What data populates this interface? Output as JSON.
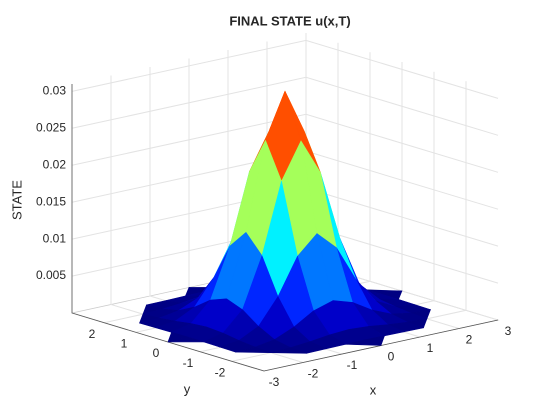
{
  "chart_data": {
    "type": "surface",
    "title": "FINAL STATE u(x,T)",
    "xlabel": "x",
    "ylabel": "y",
    "zlabel": "STATE",
    "colormap": "jet",
    "grid": true,
    "x": [
      -3,
      -2.5,
      -2,
      -1.5,
      -1,
      -0.5,
      0,
      0.5,
      1,
      1.5,
      2,
      2.5,
      3
    ],
    "y": [
      -3,
      -2.5,
      -2,
      -1.5,
      -1,
      -0.5,
      0,
      0.5,
      1,
      1.5,
      2,
      2.5,
      3
    ],
    "z": [
      [
        null,
        null,
        null,
        null,
        null,
        null,
        1e-05,
        null,
        null,
        null,
        null,
        null,
        null
      ],
      [
        null,
        null,
        null,
        2e-05,
        5e-05,
        9e-05,
        0.00012,
        9e-05,
        5e-05,
        2e-05,
        null,
        null,
        null
      ],
      [
        null,
        null,
        2e-05,
        0.00012,
        0.00036,
        0.0007,
        0.00087,
        0.0007,
        0.00036,
        0.00012,
        2e-05,
        null,
        null
      ],
      [
        null,
        2e-05,
        0.00012,
        0.00056,
        0.00169,
        0.0033,
        0.00412,
        0.0033,
        0.00169,
        0.00056,
        0.00012,
        2e-05,
        null
      ],
      [
        null,
        5e-05,
        0.00036,
        0.00169,
        0.00515,
        0.01004,
        0.01253,
        0.01004,
        0.00515,
        0.00169,
        0.00036,
        5e-05,
        null
      ],
      [
        null,
        9e-05,
        0.0007,
        0.0033,
        0.01004,
        0.01955,
        0.02442,
        0.01955,
        0.01004,
        0.0033,
        0.0007,
        9e-05,
        null
      ],
      [
        1e-05,
        0.00012,
        0.00087,
        0.00412,
        0.01253,
        0.02442,
        0.0305,
        0.02442,
        0.01253,
        0.00412,
        0.00087,
        0.00012,
        1e-05
      ],
      [
        null,
        9e-05,
        0.0007,
        0.0033,
        0.01004,
        0.01955,
        0.02442,
        0.01955,
        0.01004,
        0.0033,
        0.0007,
        9e-05,
        null
      ],
      [
        null,
        5e-05,
        0.00036,
        0.00169,
        0.00515,
        0.01004,
        0.01253,
        0.01004,
        0.00515,
        0.00169,
        0.00036,
        5e-05,
        null
      ],
      [
        null,
        2e-05,
        0.00012,
        0.00056,
        0.00169,
        0.0033,
        0.00412,
        0.0033,
        0.00169,
        0.00056,
        0.00012,
        2e-05,
        null
      ],
      [
        null,
        null,
        2e-05,
        0.00012,
        0.00036,
        0.0007,
        0.00087,
        0.0007,
        0.00036,
        0.00012,
        2e-05,
        null,
        null
      ],
      [
        null,
        null,
        null,
        2e-05,
        5e-05,
        9e-05,
        0.00012,
        9e-05,
        5e-05,
        2e-05,
        null,
        null,
        null
      ],
      [
        null,
        null,
        null,
        null,
        null,
        null,
        1e-05,
        null,
        null,
        null,
        null,
        null,
        null
      ]
    ],
    "xlim": [
      -3,
      3
    ],
    "ylim": [
      -3,
      3
    ],
    "zlim": [
      0,
      0.031
    ],
    "xticks": [
      -3,
      -2,
      -1,
      0,
      1,
      2,
      3
    ],
    "yticks": [
      -2,
      -1,
      0,
      1,
      2
    ],
    "zticks": [
      0.005,
      0.01,
      0.015,
      0.02,
      0.025,
      0.03
    ]
  }
}
